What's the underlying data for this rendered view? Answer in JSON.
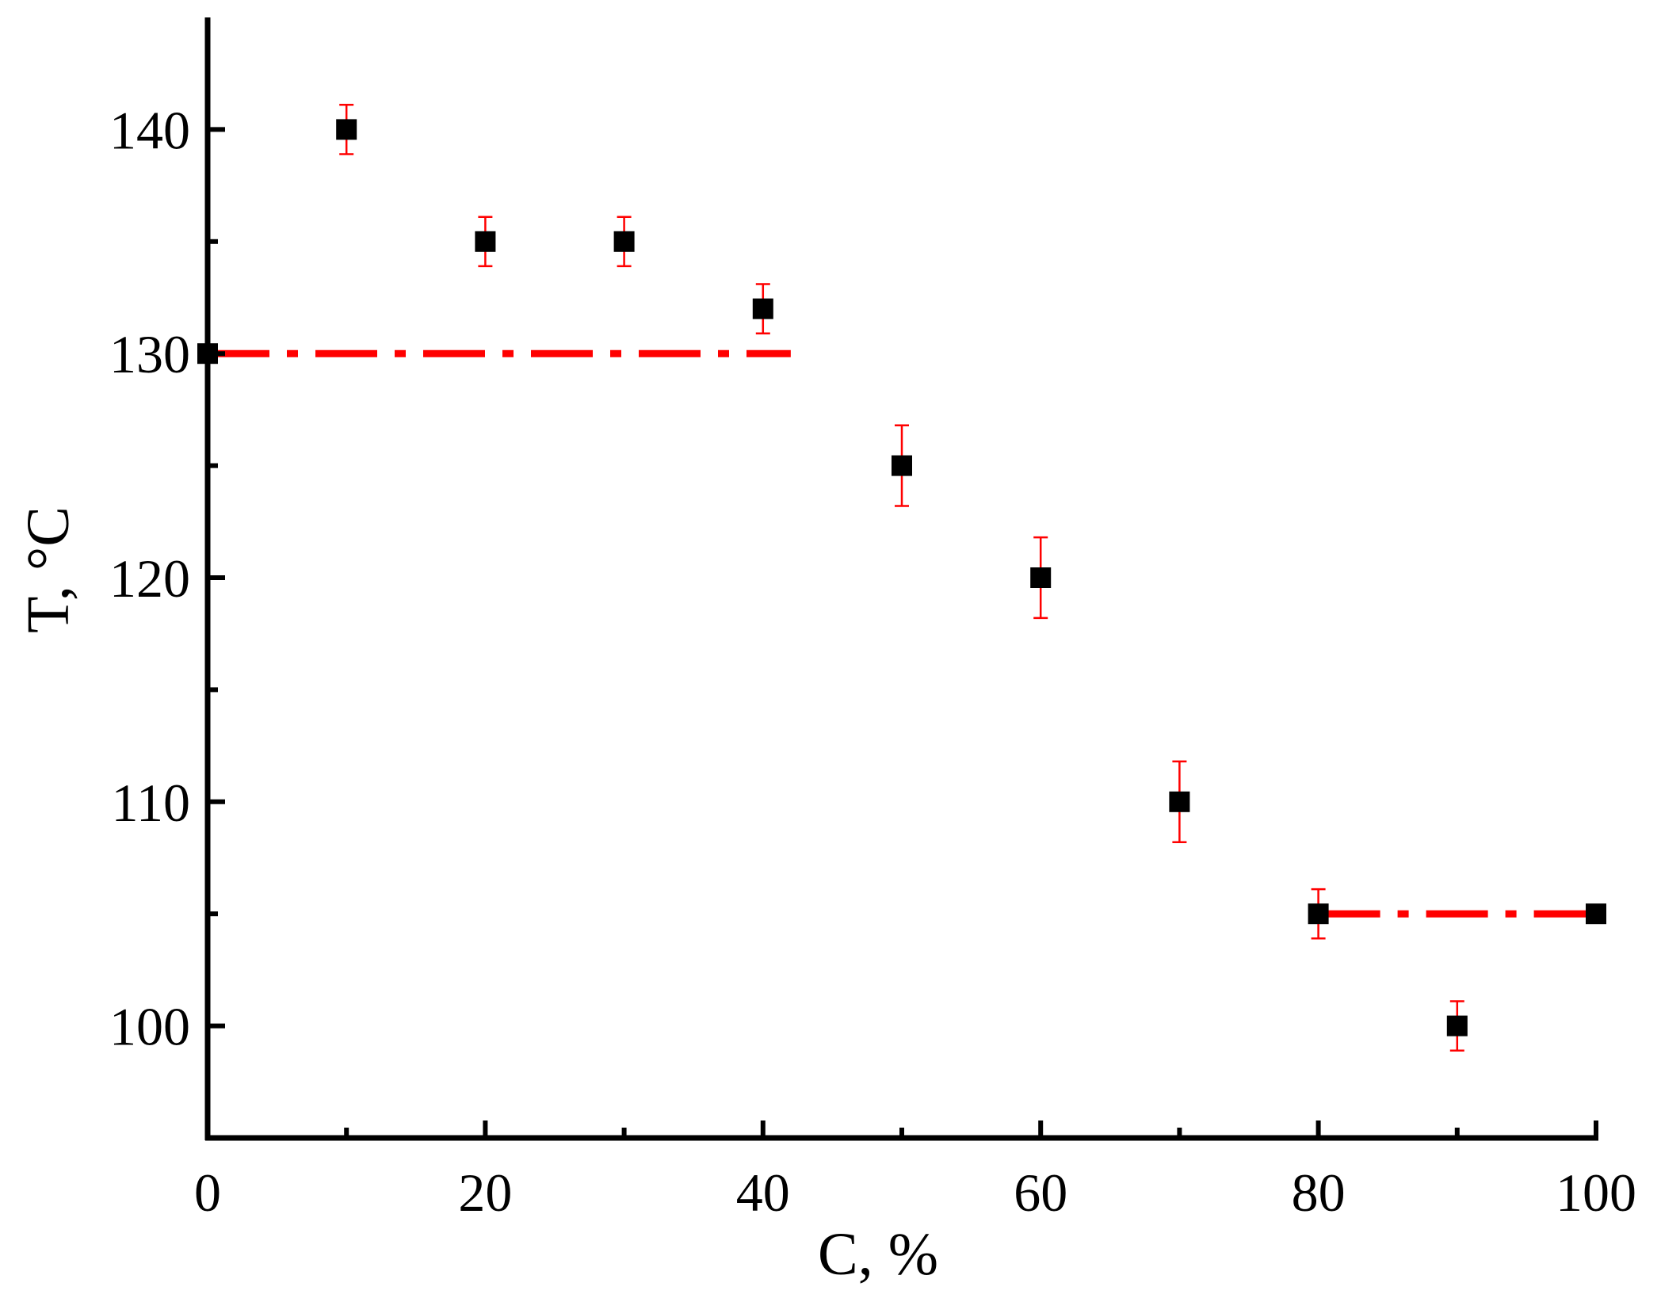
{
  "chart_data": {
    "type": "scatter",
    "title": "",
    "xlabel": "C, %",
    "ylabel": "T, °C",
    "xlim": [
      0,
      100
    ],
    "ylim": [
      95,
      145
    ],
    "x_ticks": [
      0,
      20,
      40,
      60,
      80,
      100
    ],
    "x_tick_labels": [
      "0",
      "20",
      "40",
      "60",
      "80",
      "100"
    ],
    "y_ticks": [
      100,
      110,
      120,
      130,
      140
    ],
    "y_tick_labels": [
      "100",
      "110",
      "120",
      "130",
      "140"
    ],
    "y_minor_ticks": [
      105,
      115,
      125,
      135
    ],
    "grid": false,
    "legend": "none",
    "series": [
      {
        "marker": "square",
        "color": "#000000",
        "error_bar_color": "#ff0000",
        "points": [
          {
            "x": 0,
            "y": 130,
            "err": 0
          },
          {
            "x": 10,
            "y": 140,
            "err": 1.1
          },
          {
            "x": 20,
            "y": 135,
            "err": 1.1
          },
          {
            "x": 30,
            "y": 135,
            "err": 1.1
          },
          {
            "x": 40,
            "y": 132,
            "err": 1.1
          },
          {
            "x": 50,
            "y": 125,
            "err": 1.8
          },
          {
            "x": 60,
            "y": 120,
            "err": 1.8
          },
          {
            "x": 70,
            "y": 110,
            "err": 1.8
          },
          {
            "x": 80,
            "y": 105,
            "err": 1.1
          },
          {
            "x": 90,
            "y": 100,
            "err": 1.1
          },
          {
            "x": 100,
            "y": 105,
            "err": 0
          }
        ]
      }
    ],
    "reference_lines": [
      {
        "style": "dash-dot",
        "color": "#ff0000",
        "y": 130,
        "x_start": 0,
        "x_end": 42
      },
      {
        "style": "dash-dot",
        "color": "#ff0000",
        "y": 105,
        "x_start": 80,
        "x_end": 100
      }
    ]
  }
}
